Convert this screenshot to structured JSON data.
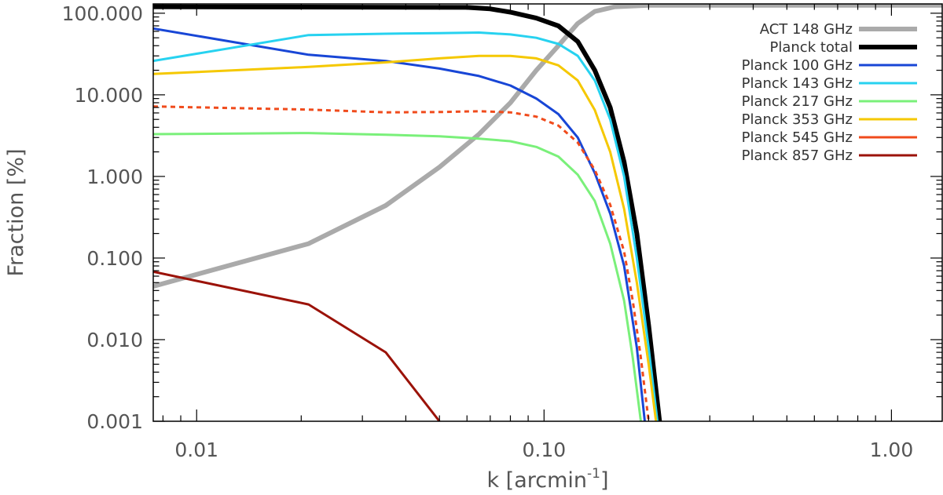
{
  "chart_data": {
    "type": "line",
    "title": "",
    "xlabel": "k [arcmin",
    "xlabel_sup": "-1",
    "xlabel_close": "]",
    "ylabel": "Fraction [%]",
    "xscale": "log",
    "yscale": "log",
    "xlim": [
      0.0075,
      1.4
    ],
    "ylim": [
      0.001,
      130
    ],
    "xticks": [
      {
        "value": 0.01,
        "label": "0.01"
      },
      {
        "value": 0.1,
        "label": "0.10"
      },
      {
        "value": 1.0,
        "label": "1.00"
      }
    ],
    "yticks": [
      {
        "value": 0.001,
        "label": "0.001"
      },
      {
        "value": 0.01,
        "label": "0.010"
      },
      {
        "value": 0.1,
        "label": "0.100"
      },
      {
        "value": 1,
        "label": "1.000"
      },
      {
        "value": 10,
        "label": "10.000"
      },
      {
        "value": 100,
        "label": "100.000"
      }
    ],
    "legend_position": "top-right",
    "grid": false,
    "series": [
      {
        "name": "ACT 148 GHz",
        "color": "#aaaaaa",
        "width": 6,
        "dash": false,
        "points": [
          [
            0.0075,
            0.045
          ],
          [
            0.021,
            0.15
          ],
          [
            0.035,
            0.44
          ],
          [
            0.05,
            1.3
          ],
          [
            0.065,
            3.3
          ],
          [
            0.08,
            8.0
          ],
          [
            0.095,
            20
          ],
          [
            0.11,
            40
          ],
          [
            0.125,
            75
          ],
          [
            0.14,
            105
          ],
          [
            0.16,
            120
          ],
          [
            0.2,
            125
          ],
          [
            1.4,
            125
          ]
        ]
      },
      {
        "name": "Planck total",
        "color": "#000000",
        "width": 6,
        "dash": false,
        "points": [
          [
            0.0075,
            120
          ],
          [
            0.06,
            118
          ],
          [
            0.07,
            113
          ],
          [
            0.08,
            103
          ],
          [
            0.095,
            87
          ],
          [
            0.11,
            70
          ],
          [
            0.125,
            45
          ],
          [
            0.14,
            20
          ],
          [
            0.155,
            7
          ],
          [
            0.17,
            1.5
          ],
          [
            0.185,
            0.2
          ],
          [
            0.2,
            0.015
          ],
          [
            0.215,
            0.001
          ]
        ]
      },
      {
        "name": "Planck 100 GHz",
        "color": "#1846d6",
        "width": 3,
        "dash": false,
        "points": [
          [
            0.0075,
            65
          ],
          [
            0.021,
            31
          ],
          [
            0.035,
            26
          ],
          [
            0.05,
            21
          ],
          [
            0.065,
            17
          ],
          [
            0.08,
            13
          ],
          [
            0.095,
            9
          ],
          [
            0.11,
            5.8
          ],
          [
            0.125,
            3
          ],
          [
            0.14,
            1.1
          ],
          [
            0.155,
            0.35
          ],
          [
            0.17,
            0.08
          ],
          [
            0.185,
            0.008
          ],
          [
            0.195,
            0.001
          ]
        ]
      },
      {
        "name": "Planck 143 GHz",
        "color": "#27d2f0",
        "width": 3,
        "dash": false,
        "points": [
          [
            0.0075,
            26
          ],
          [
            0.021,
            54
          ],
          [
            0.035,
            56
          ],
          [
            0.05,
            57
          ],
          [
            0.065,
            58
          ],
          [
            0.08,
            55
          ],
          [
            0.095,
            50
          ],
          [
            0.11,
            42
          ],
          [
            0.125,
            30
          ],
          [
            0.14,
            15
          ],
          [
            0.155,
            5
          ],
          [
            0.17,
            1
          ],
          [
            0.185,
            0.1
          ],
          [
            0.2,
            0.008
          ],
          [
            0.212,
            0.001
          ]
        ]
      },
      {
        "name": "Planck 217 GHz",
        "color": "#7af07a",
        "width": 3,
        "dash": false,
        "points": [
          [
            0.0075,
            3.3
          ],
          [
            0.021,
            3.4
          ],
          [
            0.035,
            3.25
          ],
          [
            0.05,
            3.1
          ],
          [
            0.065,
            2.9
          ],
          [
            0.08,
            2.7
          ],
          [
            0.095,
            2.3
          ],
          [
            0.11,
            1.75
          ],
          [
            0.125,
            1.05
          ],
          [
            0.14,
            0.5
          ],
          [
            0.155,
            0.15
          ],
          [
            0.17,
            0.03
          ],
          [
            0.18,
            0.006
          ],
          [
            0.19,
            0.001
          ]
        ]
      },
      {
        "name": "Planck 353 GHz",
        "color": "#f5c800",
        "width": 3,
        "dash": false,
        "points": [
          [
            0.0075,
            18
          ],
          [
            0.021,
            22
          ],
          [
            0.035,
            25
          ],
          [
            0.05,
            28
          ],
          [
            0.065,
            30
          ],
          [
            0.08,
            30
          ],
          [
            0.095,
            28
          ],
          [
            0.11,
            23
          ],
          [
            0.125,
            15
          ],
          [
            0.14,
            6.5
          ],
          [
            0.155,
            2
          ],
          [
            0.17,
            0.4
          ],
          [
            0.185,
            0.05
          ],
          [
            0.2,
            0.005
          ],
          [
            0.21,
            0.001
          ]
        ]
      },
      {
        "name": "Planck 545 GHz",
        "color": "#f04b1c",
        "width": 3,
        "dash": true,
        "points": [
          [
            0.0075,
            7.2
          ],
          [
            0.021,
            6.6
          ],
          [
            0.035,
            6.1
          ],
          [
            0.05,
            6.15
          ],
          [
            0.065,
            6.3
          ],
          [
            0.08,
            6.1
          ],
          [
            0.095,
            5.4
          ],
          [
            0.11,
            4.2
          ],
          [
            0.125,
            2.6
          ],
          [
            0.14,
            1.2
          ],
          [
            0.155,
            0.45
          ],
          [
            0.17,
            0.12
          ],
          [
            0.18,
            0.03
          ],
          [
            0.19,
            0.006
          ],
          [
            0.2,
            0.001
          ]
        ]
      },
      {
        "name": "Planck 857 GHz",
        "color": "#9b1208",
        "width": 3,
        "dash": false,
        "points": [
          [
            0.0075,
            0.068
          ],
          [
            0.021,
            0.027
          ],
          [
            0.035,
            0.007
          ],
          [
            0.05,
            0.001
          ]
        ]
      }
    ]
  }
}
